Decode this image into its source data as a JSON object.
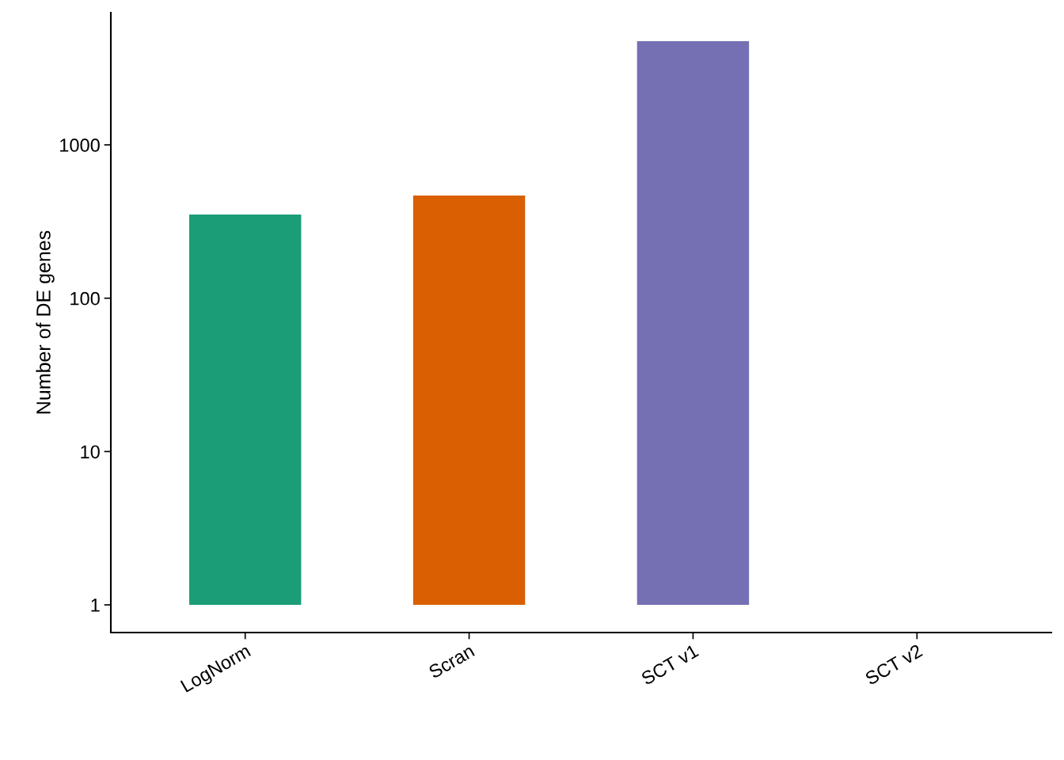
{
  "chart_data": {
    "type": "bar",
    "ylabel": "Number of DE genes",
    "categories": [
      "LogNorm",
      "Scran",
      "SCT v1",
      "SCT v2"
    ],
    "values": [
      350,
      466,
      4740,
      null
    ],
    "base": [
      1,
      1,
      1,
      null
    ],
    "colors": [
      "#1b9e77",
      "#d95f02",
      "#7570b3",
      "#e7298a"
    ],
    "log": "y",
    "ylim": [
      0.66,
      7280
    ],
    "yticks": [
      1,
      10,
      100,
      1000
    ],
    "grid": false,
    "legend": false
  }
}
